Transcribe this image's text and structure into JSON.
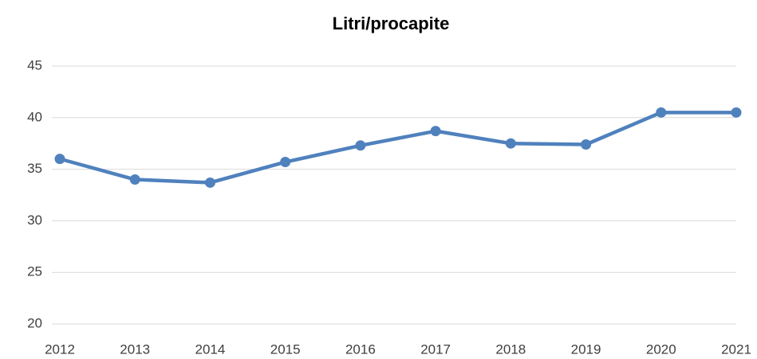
{
  "chart_data": {
    "type": "line",
    "title": "Litri/procapite",
    "x": [
      2012,
      2013,
      2014,
      2015,
      2016,
      2017,
      2018,
      2019,
      2020,
      2021
    ],
    "series": [
      {
        "name": "Litri/procapite",
        "color": "#4f81bd",
        "values": [
          36.0,
          34.0,
          33.7,
          35.7,
          37.3,
          38.7,
          37.5,
          37.4,
          40.5,
          40.5
        ]
      }
    ],
    "xlim": [
      2012,
      2021
    ],
    "xticks": [
      2012,
      2013,
      2014,
      2015,
      2016,
      2017,
      2018,
      2019,
      2020,
      2021
    ],
    "ylim": [
      20,
      45
    ],
    "yticks": [
      20,
      25,
      30,
      35,
      40,
      45
    ],
    "grid": true
  }
}
